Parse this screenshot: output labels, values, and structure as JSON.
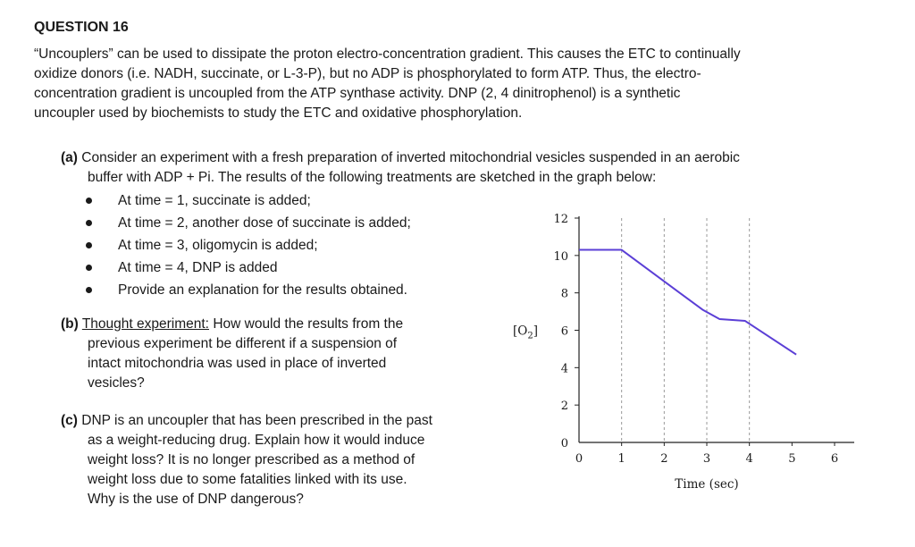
{
  "question": {
    "title": "QUESTION 16",
    "intro": [
      "“Uncouplers” can be used to dissipate the proton electro-concentration gradient. This causes the ETC to continually",
      "oxidize donors (i.e. NADH, succinate, or L-3-P), but no ADP is phosphorylated to form ATP. Thus, the electro-",
      "concentration gradient is uncoupled from the ATP synthase activity. DNP (2, 4 dinitrophenol) is a synthetic",
      "uncoupler used by biochemists to study the ETC and oxidative phosphorylation."
    ]
  },
  "part_a": {
    "label": "(a)",
    "lines": [
      "Consider an experiment with a fresh preparation of inverted mitochondrial vesicles suspended in an aerobic",
      "buffer with ADP + Pi.  The results of the following treatments are sketched in the graph below:"
    ],
    "bullets": [
      "At time = 1, succinate is added;",
      "At time = 2, another dose of succinate is added;",
      "At time = 3, oligomycin is added;",
      "At time = 4, DNP is added",
      "Provide an explanation for the results obtained."
    ]
  },
  "part_b": {
    "label": "(b)",
    "underlined": "Thought experiment:",
    "lines": [
      "How would the results from the",
      "previous experiment be different if a suspension of",
      "intact mitochondria was used in place of inverted",
      "vesicles?"
    ]
  },
  "part_c": {
    "label": "(c)",
    "lines": [
      "DNP is an uncoupler that has been prescribed in the past",
      "as a weight-reducing drug. Explain how it would induce",
      "weight loss? It is no longer prescribed as a method of",
      "weight loss due to some fatalities linked with its use.",
      "Why is the use of DNP dangerous?"
    ]
  },
  "chart_data": {
    "type": "line",
    "xlabel": "Time (sec)",
    "ylabel": "[O2]",
    "xlim": [
      0,
      6
    ],
    "ylim": [
      0,
      12
    ],
    "x_ticks": [
      "0",
      "1",
      "2",
      "3",
      "4",
      "5",
      "6"
    ],
    "y_ticks": [
      "0",
      "2",
      "4",
      "6",
      "8",
      "10",
      "12"
    ],
    "vertical_dashed_lines_at": [
      1,
      2,
      3,
      4
    ],
    "grid": false,
    "line_color": "#5b3fd6",
    "series": [
      {
        "x": [
          0,
          1,
          2.9,
          3.3,
          3.9,
          5.1
        ],
        "y": [
          10.3,
          10.3,
          7.1,
          6.6,
          6.5,
          4.7
        ]
      }
    ]
  }
}
